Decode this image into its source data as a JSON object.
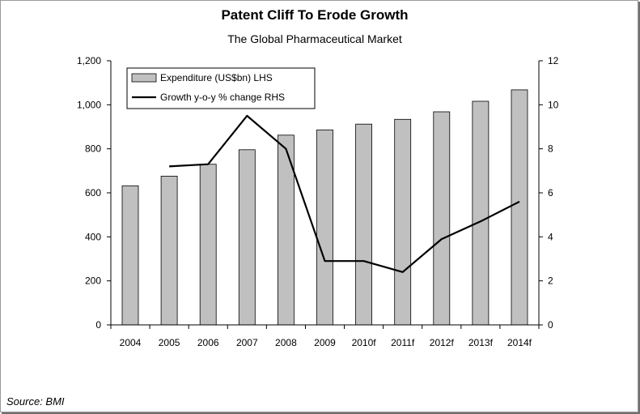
{
  "chart_data": {
    "type": "bar",
    "title": "Patent Cliff To Erode Growth",
    "subtitle": "The Global Pharmaceutical Market",
    "categories": [
      "2004",
      "2005",
      "2006",
      "2007",
      "2008",
      "2009",
      "2010f",
      "2011f",
      "2012f",
      "2013f",
      "2014f"
    ],
    "series": [
      {
        "name": "Expenditure (US$bn) LHS",
        "type": "bar",
        "axis": "left",
        "color": "#c0c0c0",
        "values": [
          632,
          676,
          730,
          796,
          862,
          886,
          912,
          934,
          968,
          1016,
          1068
        ]
      },
      {
        "name": "Growth y-o-y % change RHS",
        "type": "line",
        "axis": "right",
        "color": "#000000",
        "values": [
          null,
          7.2,
          7.3,
          9.5,
          8.0,
          2.9,
          2.9,
          2.4,
          3.9,
          4.7,
          5.6
        ]
      }
    ],
    "y_left": {
      "min": 0,
      "max": 1200,
      "ticks": [
        "0",
        "200",
        "400",
        "600",
        "800",
        "1,000",
        "1,200"
      ]
    },
    "y_right": {
      "min": 0,
      "max": 12,
      "ticks": [
        "0",
        "2",
        "4",
        "6",
        "8",
        "10",
        "12"
      ]
    },
    "grid": false,
    "legend_position": "top-left",
    "source": "Source: BMI"
  }
}
